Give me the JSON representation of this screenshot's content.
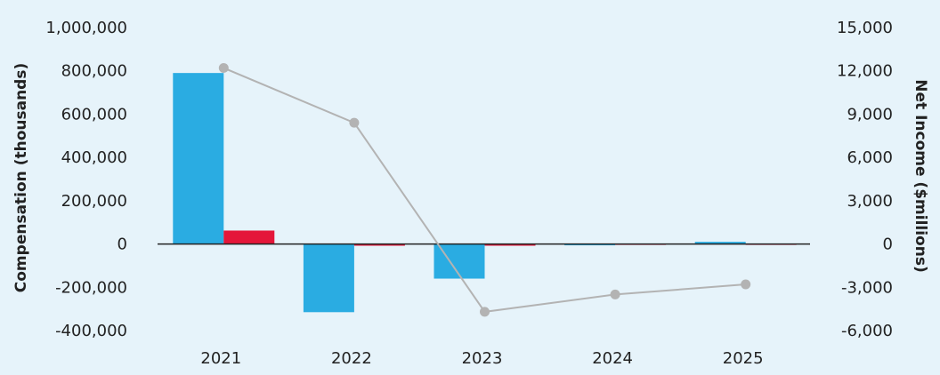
{
  "chart_data": {
    "type": "bar",
    "categories": [
      "2021",
      "2022",
      "2023",
      "2024",
      "2025"
    ],
    "series": [
      {
        "type": "bar",
        "axis": "left",
        "color": "#2aace2",
        "values": [
          790000,
          -315000,
          -160000,
          -4000,
          10000
        ]
      },
      {
        "type": "bar",
        "axis": "left",
        "color": "#e4163a",
        "values": [
          62000,
          -8000,
          -8000,
          2000,
          2000
        ]
      },
      {
        "type": "line",
        "axis": "right",
        "color": "#b3b3b3",
        "values": [
          12200,
          8400,
          -4700,
          -3500,
          -2800
        ]
      }
    ],
    "ylabel": "Compensation (thousands)",
    "y2label": "Net Income ($millions)",
    "ylim": [
      -400000,
      1000000
    ],
    "y2lim": [
      -6000,
      15000
    ],
    "yticks": [
      "-400,000",
      "-200,000",
      "0",
      "200,000",
      "400,000",
      "600,000",
      "800,000",
      "1,000,000"
    ],
    "y2ticks": [
      "-6,000",
      "-3,000",
      "0",
      "3,000",
      "6,000",
      "9,000",
      "12,000",
      "15,000"
    ],
    "grid": false,
    "legend": "none"
  }
}
